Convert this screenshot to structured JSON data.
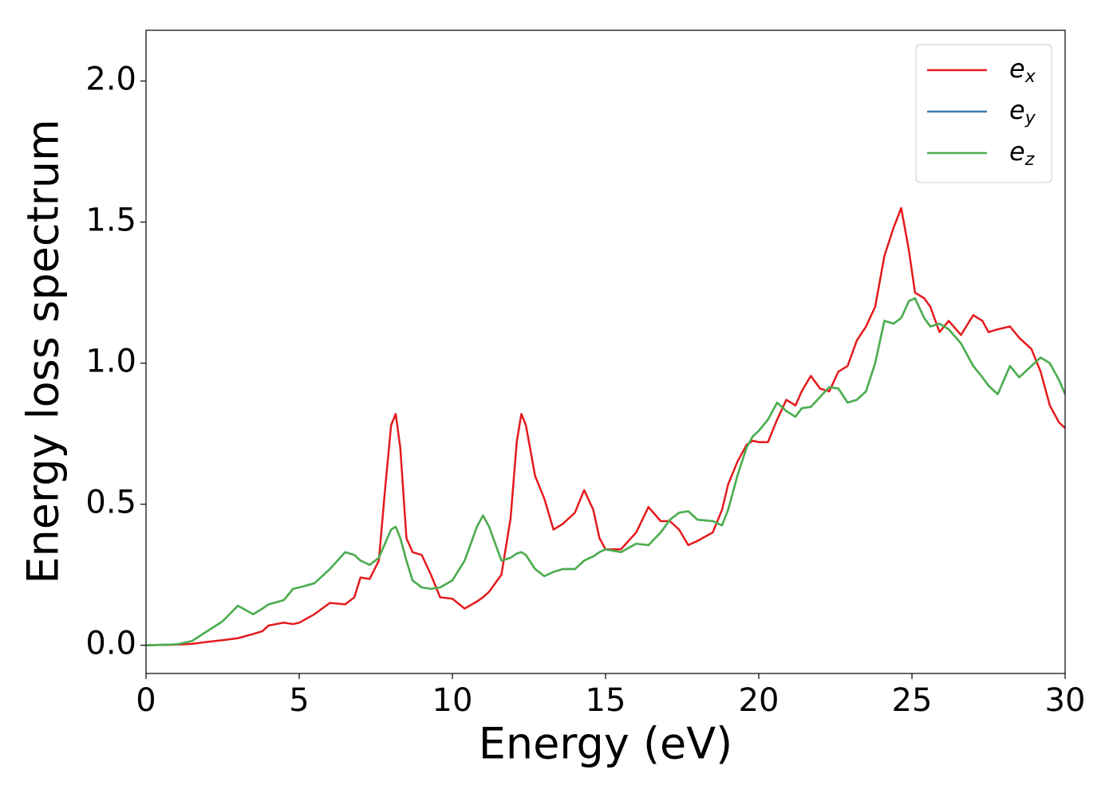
{
  "chart_data": {
    "type": "line",
    "xlabel": "Energy (eV)",
    "ylabel": "Energy loss spectrum",
    "x": [
      0,
      1,
      1.5,
      2,
      2.5,
      3,
      3.5,
      3.8,
      4,
      4.5,
      4.8,
      5,
      5.5,
      6,
      6.5,
      6.8,
      7,
      7.3,
      7.6,
      7.8,
      8,
      8.15,
      8.3,
      8.5,
      8.7,
      9,
      9.3,
      9.6,
      10,
      10.4,
      10.8,
      11,
      11.2,
      11.6,
      11.9,
      12.1,
      12.25,
      12.4,
      12.7,
      13,
      13.3,
      13.6,
      14,
      14.3,
      14.6,
      14.8,
      15,
      15.5,
      16,
      16.4,
      16.8,
      17.1,
      17.4,
      17.7,
      18,
      18.5,
      18.8,
      19,
      19.3,
      19.6,
      19.8,
      20,
      20.3,
      20.6,
      20.9,
      21.2,
      21.4,
      21.7,
      22,
      22.3,
      22.6,
      22.9,
      23.2,
      23.5,
      23.8,
      24.1,
      24.4,
      24.65,
      24.9,
      25.1,
      25.4,
      25.6,
      25.9,
      26.2,
      26.6,
      27,
      27.3,
      27.5,
      27.8,
      28.2,
      28.5,
      28.9,
      29.2,
      29.5,
      29.8,
      30
    ],
    "series": [
      {
        "name": "ex",
        "color": "#e41a1c",
        "values": [
          0,
          0.002,
          0.005,
          0.012,
          0.018,
          0.025,
          0.04,
          0.05,
          0.07,
          0.08,
          0.075,
          0.08,
          0.11,
          0.15,
          0.145,
          0.17,
          0.24,
          0.235,
          0.3,
          0.55,
          0.78,
          0.82,
          0.7,
          0.38,
          0.33,
          0.32,
          0.25,
          0.17,
          0.165,
          0.13,
          0.155,
          0.17,
          0.19,
          0.25,
          0.45,
          0.72,
          0.82,
          0.78,
          0.6,
          0.52,
          0.41,
          0.43,
          0.47,
          0.55,
          0.48,
          0.38,
          0.34,
          0.34,
          0.4,
          0.49,
          0.44,
          0.44,
          0.41,
          0.355,
          0.37,
          0.4,
          0.48,
          0.57,
          0.65,
          0.71,
          0.725,
          0.72,
          0.72,
          0.8,
          0.87,
          0.85,
          0.9,
          0.955,
          0.91,
          0.9,
          0.97,
          0.99,
          1.08,
          1.13,
          1.2,
          1.38,
          1.48,
          1.55,
          1.4,
          1.25,
          1.23,
          1.2,
          1.11,
          1.15,
          1.1,
          1.17,
          1.15,
          1.11,
          1.12,
          1.13,
          1.09,
          1.05,
          0.97,
          0.85,
          0.79,
          0.77
        ]
      },
      {
        "name": "ey",
        "color": "#377eb8",
        "values": [
          0,
          0.003,
          0.015,
          0.05,
          0.085,
          0.14,
          0.11,
          0.13,
          0.145,
          0.16,
          0.2,
          0.205,
          0.22,
          0.27,
          0.33,
          0.32,
          0.3,
          0.285,
          0.31,
          0.36,
          0.41,
          0.42,
          0.38,
          0.3,
          0.23,
          0.205,
          0.2,
          0.205,
          0.23,
          0.3,
          0.42,
          0.46,
          0.42,
          0.3,
          0.31,
          0.325,
          0.33,
          0.32,
          0.27,
          0.245,
          0.26,
          0.27,
          0.27,
          0.3,
          0.315,
          0.33,
          0.34,
          0.33,
          0.36,
          0.355,
          0.4,
          0.445,
          0.47,
          0.475,
          0.445,
          0.44,
          0.425,
          0.48,
          0.6,
          0.7,
          0.74,
          0.76,
          0.8,
          0.86,
          0.83,
          0.81,
          0.84,
          0.845,
          0.88,
          0.915,
          0.91,
          0.86,
          0.87,
          0.9,
          1.0,
          1.15,
          1.14,
          1.16,
          1.22,
          1.23,
          1.16,
          1.13,
          1.14,
          1.12,
          1.07,
          0.99,
          0.95,
          0.92,
          0.89,
          0.99,
          0.95,
          0.99,
          1.02,
          1.0,
          0.94,
          0.89
        ]
      },
      {
        "name": "ez",
        "color": "#4daf4a",
        "values": [
          0,
          0.003,
          0.015,
          0.05,
          0.085,
          0.14,
          0.11,
          0.13,
          0.145,
          0.16,
          0.2,
          0.205,
          0.22,
          0.27,
          0.33,
          0.32,
          0.3,
          0.285,
          0.31,
          0.36,
          0.41,
          0.42,
          0.38,
          0.3,
          0.23,
          0.205,
          0.2,
          0.205,
          0.23,
          0.3,
          0.42,
          0.46,
          0.42,
          0.3,
          0.31,
          0.325,
          0.33,
          0.32,
          0.27,
          0.245,
          0.26,
          0.27,
          0.27,
          0.3,
          0.315,
          0.33,
          0.34,
          0.33,
          0.36,
          0.355,
          0.4,
          0.445,
          0.47,
          0.475,
          0.445,
          0.44,
          0.425,
          0.48,
          0.6,
          0.7,
          0.74,
          0.76,
          0.8,
          0.86,
          0.83,
          0.81,
          0.84,
          0.845,
          0.88,
          0.915,
          0.91,
          0.86,
          0.87,
          0.9,
          1.0,
          1.15,
          1.14,
          1.16,
          1.22,
          1.23,
          1.16,
          1.13,
          1.14,
          1.12,
          1.07,
          0.99,
          0.95,
          0.92,
          0.89,
          0.99,
          0.95,
          0.99,
          1.02,
          1.0,
          0.94,
          0.89
        ]
      }
    ],
    "xlim": [
      0,
      30
    ],
    "xticks": [
      0,
      5,
      10,
      15,
      20,
      25,
      30
    ],
    "ylim": [
      -0.1,
      2.18
    ],
    "yticks": [
      {
        "value": 0,
        "label": "0.0"
      },
      0.5,
      {
        "value": 1,
        "label": "1.0"
      },
      1.5,
      {
        "value": 2,
        "label": "2.0"
      }
    ],
    "grid": false,
    "legend": "upper right"
  }
}
